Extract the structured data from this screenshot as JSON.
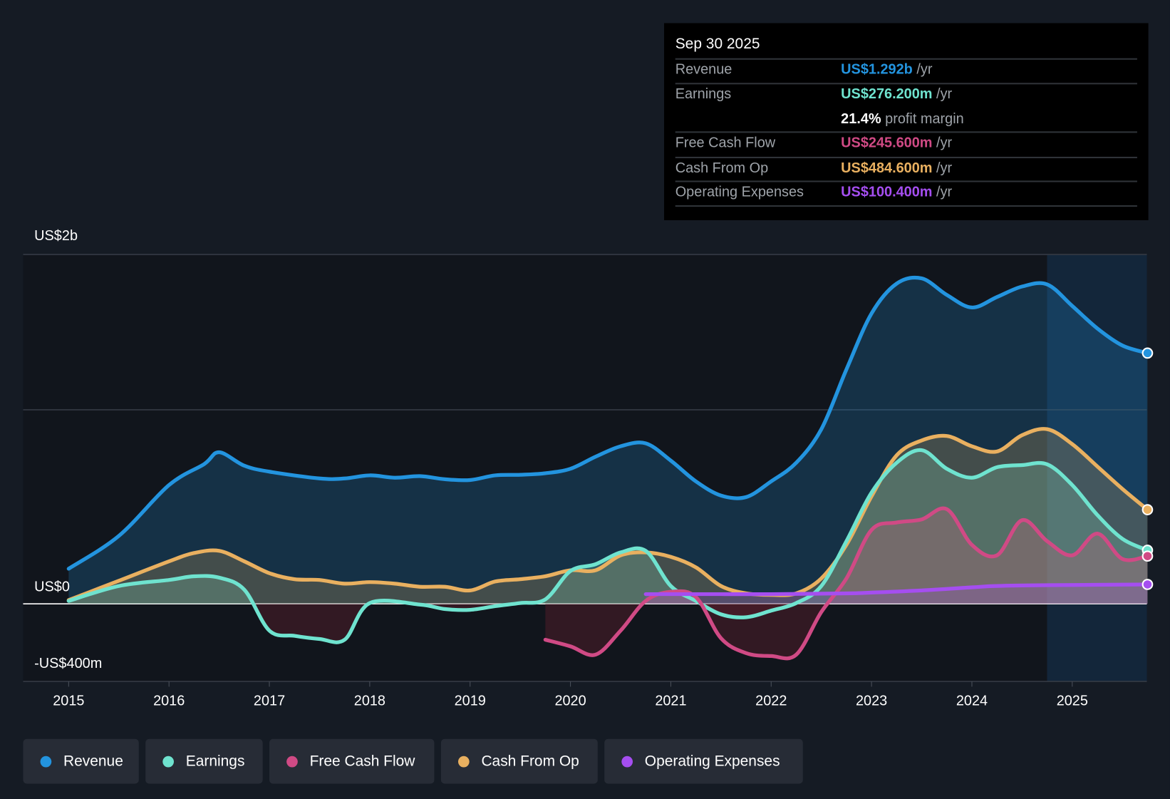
{
  "tooltip": {
    "date": "Sep 30 2025",
    "rows": [
      {
        "label": "Revenue",
        "value": "US$1.292b",
        "unit": " /yr",
        "color": "#2394df"
      },
      {
        "label": "Earnings",
        "value": "US$276.200m",
        "unit": " /yr",
        "color": "#6fe3cf"
      },
      {
        "label": "",
        "value": "21.4%",
        "unit": " profit margin",
        "color": "#ffffff"
      },
      {
        "label": "Free Cash Flow",
        "value": "US$245.600m",
        "unit": " /yr",
        "color": "#d04a85"
      },
      {
        "label": "Cash From Op",
        "value": "US$484.600m",
        "unit": " /yr",
        "color": "#e9b060"
      },
      {
        "label": "Operating Expenses",
        "value": "US$100.400m",
        "unit": " /yr",
        "color": "#a54ef0"
      }
    ]
  },
  "chart_data": {
    "type": "line",
    "title": "",
    "xlabel": "",
    "ylabel": "",
    "ylim": [
      -400,
      1800
    ],
    "y_unit": "US$m",
    "y_tick_labels": [
      {
        "value": 1800,
        "label": "US$2b"
      },
      {
        "value": 0,
        "label": "US$0"
      },
      {
        "value": -400,
        "label": "-US$400m"
      }
    ],
    "gridlines": [
      1800,
      1000,
      0,
      -400
    ],
    "x_ticks": [
      2015,
      2016,
      2017,
      2018,
      2019,
      2020,
      2021,
      2022,
      2023,
      2024,
      2025
    ],
    "highlight_from": 2024.75,
    "legend_position": "bottom-left",
    "series": [
      {
        "name": "Revenue",
        "color": "#2394df",
        "x": [
          2015,
          2015.5,
          2016,
          2016.35,
          2016.5,
          2016.75,
          2017,
          2017.5,
          2017.75,
          2018,
          2018.25,
          2018.5,
          2018.75,
          2019,
          2019.25,
          2019.5,
          2019.75,
          2020,
          2020.25,
          2020.5,
          2020.75,
          2021,
          2021.25,
          2021.5,
          2021.75,
          2022,
          2022.25,
          2022.5,
          2022.75,
          2023,
          2023.25,
          2023.5,
          2023.75,
          2024,
          2024.25,
          2024.5,
          2024.75,
          2025,
          2025.25,
          2025.5,
          2025.75
        ],
        "values": [
          181,
          350,
          612,
          720,
          781,
          712,
          681,
          646,
          646,
          662,
          650,
          658,
          642,
          638,
          662,
          665,
          673,
          696,
          758,
          812,
          827,
          738,
          631,
          558,
          550,
          631,
          727,
          900,
          1208,
          1496,
          1650,
          1677,
          1592,
          1527,
          1581,
          1635,
          1646,
          1535,
          1419,
          1331,
          1292
        ]
      },
      {
        "name": "Earnings",
        "color": "#6fe3cf",
        "x": [
          2015,
          2015.5,
          2016,
          2016.25,
          2016.5,
          2016.75,
          2017,
          2017.25,
          2017.5,
          2017.75,
          2018,
          2018.5,
          2018.75,
          2019,
          2019.25,
          2019.5,
          2019.75,
          2020,
          2020.25,
          2020.5,
          2020.75,
          2021,
          2021.25,
          2021.5,
          2021.75,
          2022,
          2022.25,
          2022.5,
          2022.75,
          2023,
          2023.25,
          2023.5,
          2023.75,
          2024,
          2024.25,
          2024.5,
          2024.75,
          2025,
          2025.25,
          2025.5,
          2025.75
        ],
        "values": [
          15,
          92,
          123,
          142,
          135,
          73,
          -138,
          -165,
          -181,
          -185,
          4,
          -4,
          -27,
          -31,
          -12,
          4,
          23,
          169,
          204,
          265,
          273,
          92,
          15,
          -54,
          -69,
          -35,
          4,
          92,
          323,
          573,
          727,
          792,
          696,
          650,
          704,
          715,
          719,
          612,
          458,
          335,
          276
        ]
      },
      {
        "name": "Free Cash Flow",
        "color": "#d04a85",
        "x": [
          2019.75,
          2020,
          2020.25,
          2020.5,
          2020.75,
          2021,
          2021.25,
          2021.5,
          2021.75,
          2022,
          2022.25,
          2022.5,
          2022.75,
          2023,
          2023.25,
          2023.5,
          2023.75,
          2024,
          2024.25,
          2024.5,
          2024.75,
          2025,
          2025.25,
          2025.5,
          2025.75
        ],
        "values": [
          -185,
          -219,
          -262,
          -138,
          15,
          62,
          35,
          -177,
          -254,
          -269,
          -262,
          -42,
          131,
          381,
          419,
          435,
          488,
          304,
          250,
          431,
          323,
          250,
          362,
          231,
          246
        ]
      },
      {
        "name": "Cash From Op",
        "color": "#e9b060",
        "x": [
          2015,
          2015.5,
          2016,
          2016.25,
          2016.5,
          2016.75,
          2017,
          2017.25,
          2017.5,
          2017.75,
          2018,
          2018.25,
          2018.5,
          2018.75,
          2019,
          2019.25,
          2019.5,
          2019.75,
          2020,
          2020.25,
          2020.5,
          2020.75,
          2021,
          2021.25,
          2021.5,
          2021.75,
          2022,
          2022.25,
          2022.5,
          2022.75,
          2023,
          2023.25,
          2023.5,
          2023.75,
          2024,
          2024.25,
          2024.5,
          2024.75,
          2025,
          2025.25,
          2025.5,
          2025.75
        ],
        "values": [
          19,
          119,
          219,
          262,
          273,
          219,
          158,
          127,
          123,
          104,
          112,
          104,
          88,
          88,
          69,
          115,
          127,
          142,
          173,
          173,
          250,
          265,
          242,
          188,
          92,
          54,
          46,
          54,
          131,
          304,
          554,
          765,
          842,
          865,
          812,
          785,
          869,
          900,
          823,
          708,
          592,
          485
        ]
      },
      {
        "name": "Operating Expenses",
        "color": "#a54ef0",
        "x": [
          2020.75,
          2021.5,
          2022,
          2022.75,
          2023,
          2023.5,
          2024,
          2024.25,
          2024.75,
          2025.75
        ],
        "values": [
          50,
          50,
          50,
          54,
          58,
          69,
          85,
          92,
          96,
          100
        ]
      }
    ]
  }
}
